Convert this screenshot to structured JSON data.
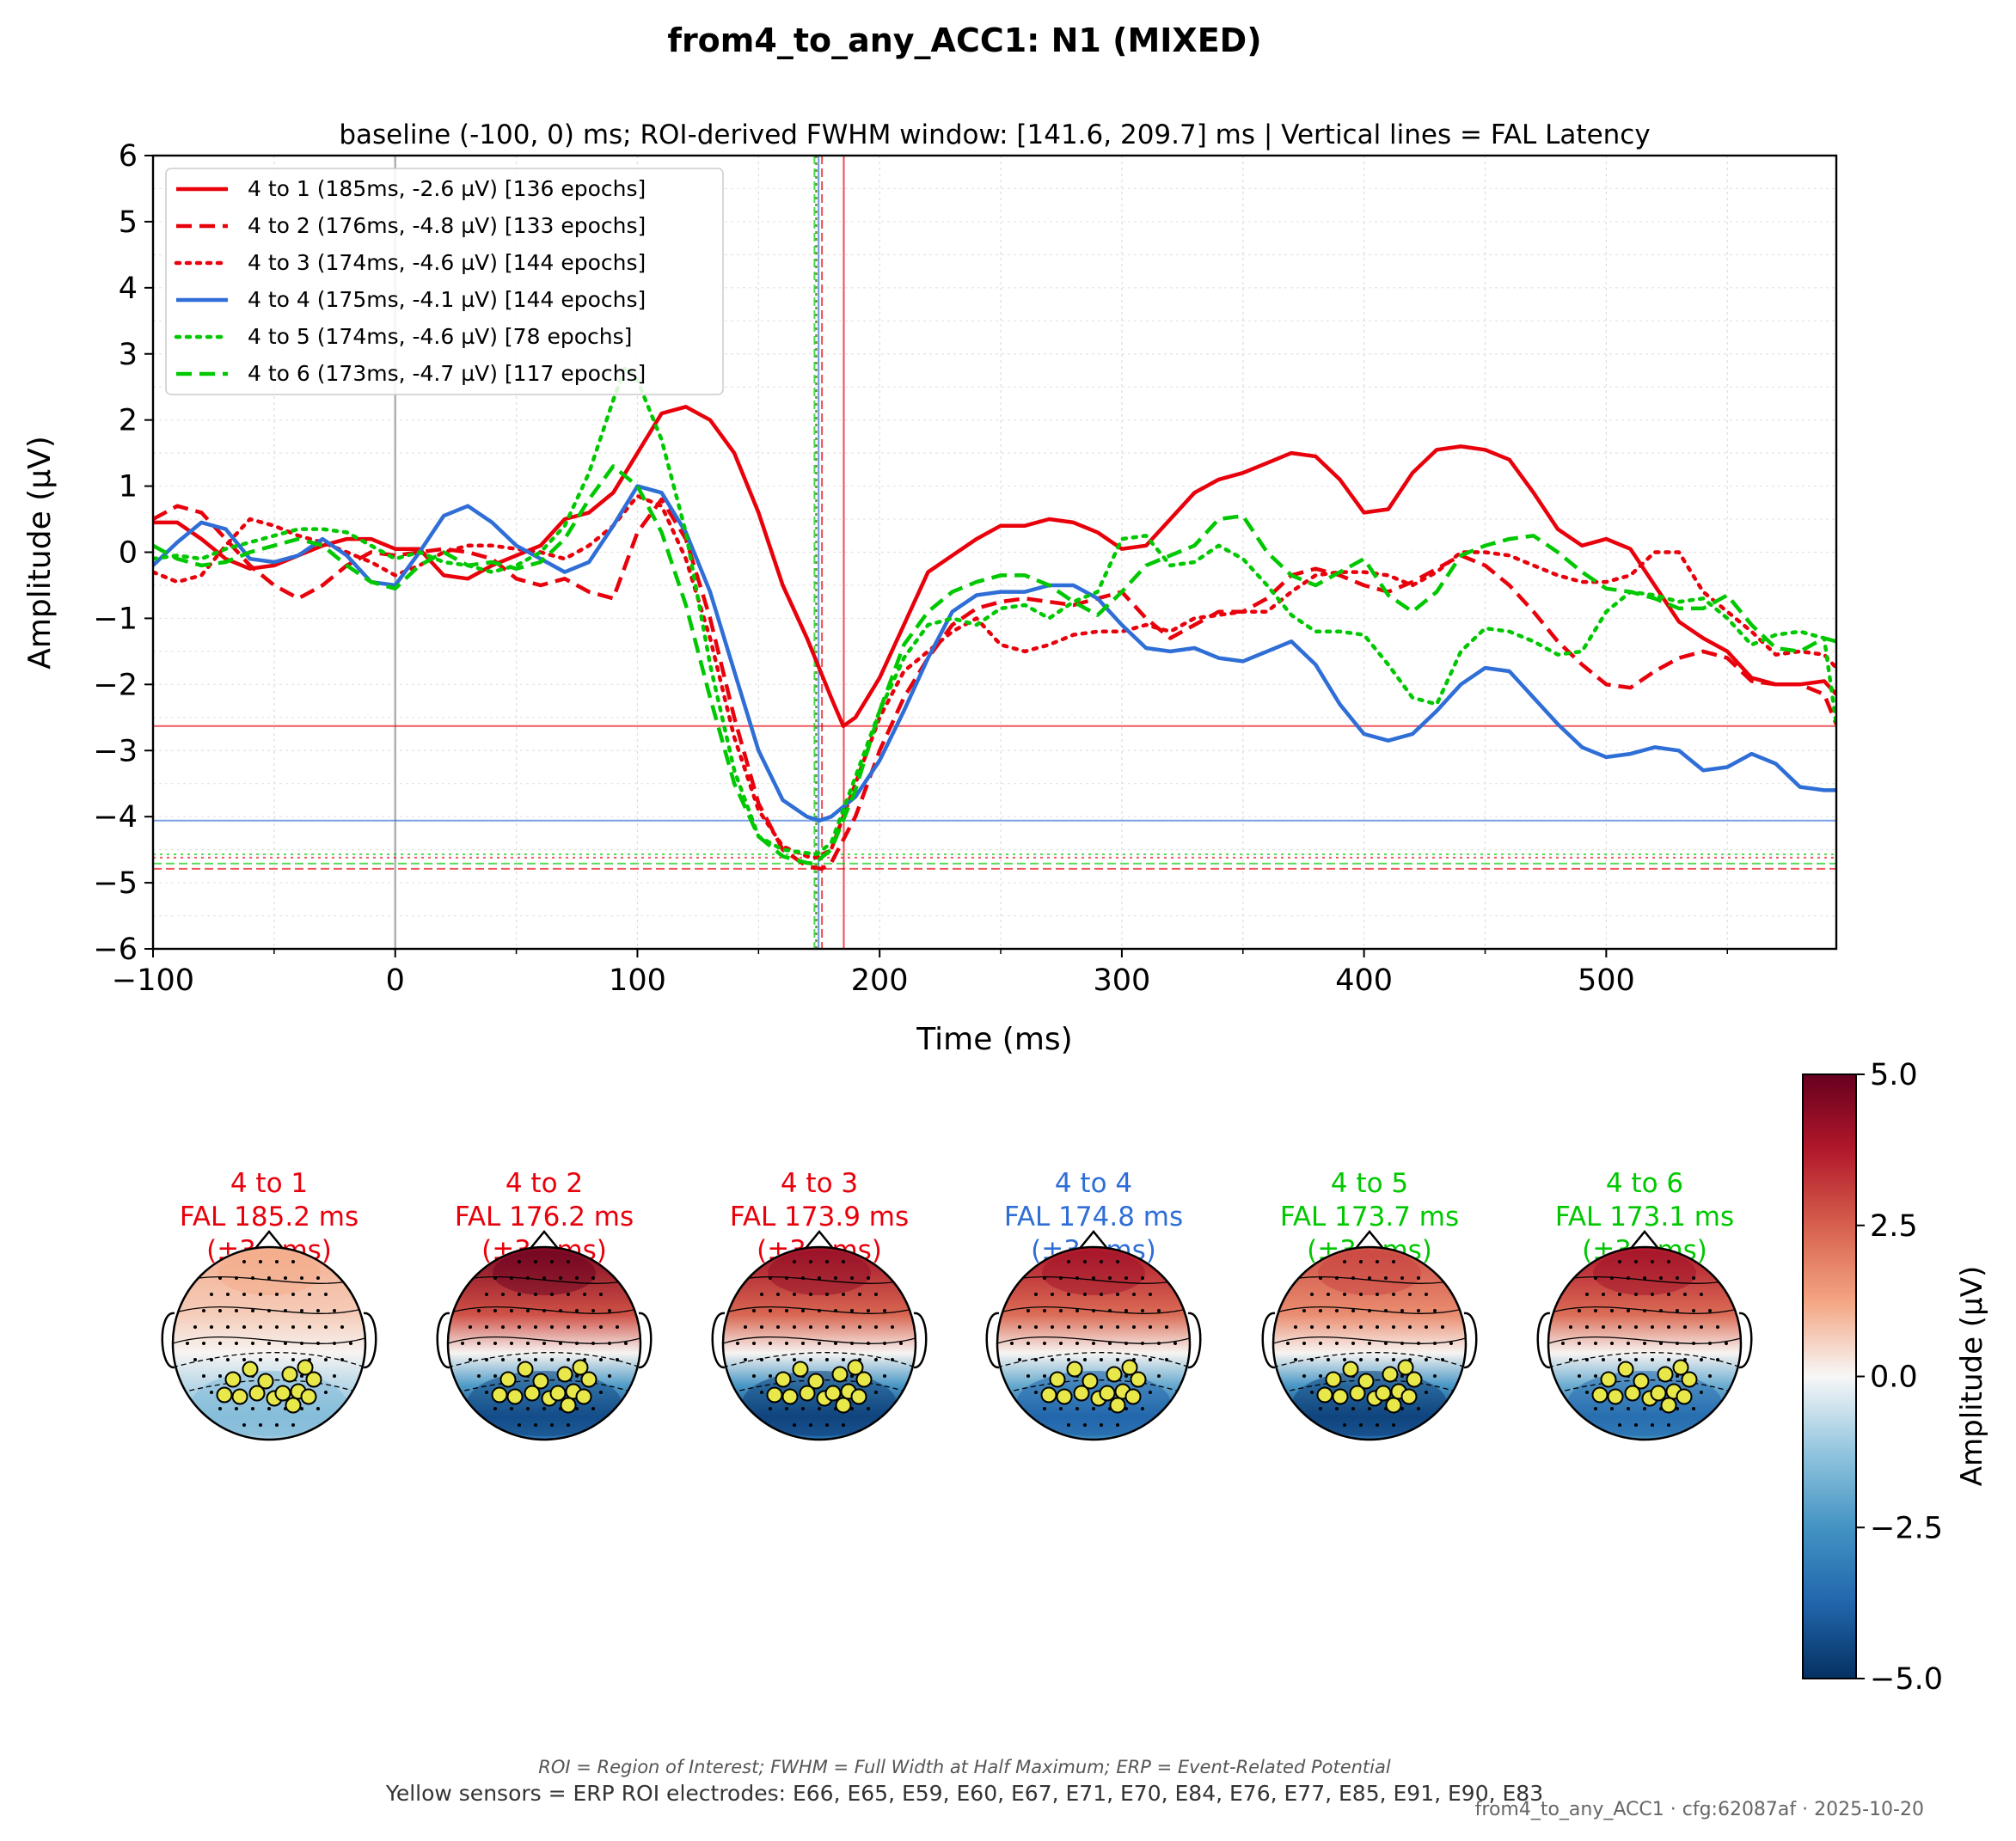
{
  "figure": {
    "title": "from4_to_any_ACC1: N1 (MIXED)",
    "footnote": "ROI = Region of Interest; FWHM = Full Width at Half Maximum; ERP = Event-Related Potential",
    "roi_note": "Yellow sensors = ERP ROI electrodes: E66, E65, E59, E60, E67, E71, E70, E84, E76, E77, E85, E91, E90, E83",
    "stamp": "from4_to_any_ACC1 · cfg:62087af · 2025-10-20"
  },
  "chart_data": [
    {
      "type": "line",
      "subtitle": "baseline (-100, 0) ms; ROI-derived FWHM window: [141.6, 209.7] ms | Vertical lines = FAL Latency",
      "xlabel": "Time (ms)",
      "ylabel": "Amplitude (µV)",
      "xlim": [
        -100,
        595
      ],
      "ylim": [
        -6,
        6
      ],
      "xticks": [
        -100,
        0,
        100,
        200,
        300,
        400,
        500
      ],
      "xtick_labels": [
        "−100",
        "0",
        "100",
        "200",
        "300",
        "400",
        "500"
      ],
      "yticks": [
        -6,
        -5,
        -4,
        -3,
        -2,
        -1,
        0,
        1,
        2,
        3,
        4,
        5,
        6
      ],
      "ytick_labels": [
        "−6",
        "−5",
        "−4",
        "−3",
        "−2",
        "−1",
        "0",
        "1",
        "2",
        "3",
        "4",
        "5",
        "6"
      ],
      "grid": true,
      "legend_position": "upper-left",
      "zero_marker_x": 0,
      "series": [
        {
          "name": "4 to 1 (185ms, -2.6 µV) [136 epochs]",
          "color": "#e8000b",
          "style": "solid",
          "latency": 185.2,
          "peak": -2.63,
          "x": [
            -100,
            -90,
            -80,
            -70,
            -60,
            -50,
            -40,
            -30,
            -20,
            -10,
            0,
            10,
            20,
            30,
            40,
            50,
            60,
            70,
            80,
            90,
            100,
            110,
            120,
            130,
            140,
            150,
            160,
            170,
            180,
            185,
            190,
            200,
            210,
            220,
            230,
            240,
            250,
            260,
            270,
            280,
            290,
            300,
            310,
            320,
            330,
            340,
            350,
            360,
            370,
            380,
            390,
            400,
            410,
            420,
            430,
            440,
            450,
            460,
            470,
            480,
            490,
            500,
            510,
            520,
            530,
            540,
            550,
            560,
            570,
            580,
            590,
            595
          ],
          "y": [
            0.45,
            0.45,
            0.2,
            -0.1,
            -0.25,
            -0.2,
            -0.05,
            0.1,
            0.2,
            0.2,
            0.05,
            0.05,
            -0.35,
            -0.4,
            -0.2,
            -0.05,
            0.1,
            0.5,
            0.6,
            0.9,
            1.5,
            2.1,
            2.2,
            2.0,
            1.5,
            0.6,
            -0.5,
            -1.3,
            -2.2,
            -2.63,
            -2.5,
            -1.9,
            -1.1,
            -0.3,
            -0.05,
            0.2,
            0.4,
            0.4,
            0.5,
            0.45,
            0.3,
            0.05,
            0.1,
            0.5,
            0.9,
            1.1,
            1.2,
            1.35,
            1.5,
            1.45,
            1.1,
            0.6,
            0.65,
            1.2,
            1.55,
            1.6,
            1.55,
            1.4,
            0.9,
            0.35,
            0.1,
            0.2,
            0.05,
            -0.5,
            -1.05,
            -1.3,
            -1.5,
            -1.9,
            -2.0,
            -2.0,
            -1.95,
            -2.15
          ]
        },
        {
          "name": "4 to 2 (176ms, -4.8 µV) [133 epochs]",
          "color": "#e8000b",
          "style": "dashed",
          "latency": 176.2,
          "peak": -4.79,
          "x": [
            -100,
            -90,
            -80,
            -70,
            -60,
            -50,
            -40,
            -30,
            -20,
            -10,
            0,
            10,
            20,
            30,
            40,
            50,
            60,
            70,
            80,
            90,
            100,
            110,
            120,
            130,
            140,
            150,
            160,
            170,
            176,
            180,
            190,
            200,
            210,
            220,
            230,
            240,
            250,
            260,
            270,
            280,
            290,
            300,
            310,
            320,
            330,
            340,
            350,
            360,
            370,
            380,
            390,
            400,
            410,
            420,
            430,
            440,
            450,
            460,
            470,
            480,
            490,
            500,
            510,
            520,
            530,
            540,
            550,
            560,
            570,
            580,
            590,
            595
          ],
          "y": [
            0.5,
            0.7,
            0.6,
            0.2,
            -0.2,
            -0.5,
            -0.7,
            -0.5,
            -0.2,
            0.0,
            -0.05,
            0.0,
            0.05,
            0.0,
            -0.1,
            -0.4,
            -0.5,
            -0.4,
            -0.6,
            -0.7,
            0.3,
            0.8,
            0.2,
            -1.0,
            -2.5,
            -3.8,
            -4.5,
            -4.75,
            -4.79,
            -4.7,
            -4.0,
            -3.0,
            -2.2,
            -1.6,
            -1.1,
            -0.85,
            -0.75,
            -0.7,
            -0.75,
            -0.8,
            -0.7,
            -0.6,
            -1.0,
            -1.3,
            -1.1,
            -0.9,
            -0.9,
            -0.7,
            -0.35,
            -0.25,
            -0.35,
            -0.5,
            -0.6,
            -0.45,
            -0.25,
            -0.05,
            -0.2,
            -0.5,
            -0.9,
            -1.35,
            -1.7,
            -2.0,
            -2.05,
            -1.8,
            -1.6,
            -1.5,
            -1.6,
            -1.95,
            -2.0,
            -2.0,
            -2.15,
            -2.6
          ]
        },
        {
          "name": "4 to 3 (174ms, -4.6 µV) [144 epochs]",
          "color": "#e8000b",
          "style": "dotted",
          "latency": 173.9,
          "peak": -4.62,
          "x": [
            -100,
            -90,
            -80,
            -70,
            -60,
            -50,
            -40,
            -30,
            -20,
            -10,
            0,
            10,
            20,
            30,
            40,
            50,
            60,
            70,
            80,
            90,
            100,
            110,
            120,
            130,
            140,
            150,
            160,
            170,
            174,
            180,
            190,
            200,
            210,
            220,
            230,
            240,
            250,
            260,
            270,
            280,
            290,
            300,
            310,
            320,
            330,
            340,
            350,
            360,
            370,
            380,
            390,
            400,
            410,
            420,
            430,
            440,
            450,
            460,
            470,
            480,
            490,
            500,
            510,
            520,
            530,
            540,
            550,
            560,
            570,
            580,
            590,
            595
          ],
          "y": [
            -0.3,
            -0.45,
            -0.35,
            0.1,
            0.5,
            0.4,
            0.25,
            0.15,
            0.0,
            -0.15,
            -0.35,
            -0.2,
            0.0,
            0.1,
            0.1,
            0.05,
            0.0,
            -0.1,
            0.1,
            0.4,
            0.85,
            0.7,
            -0.1,
            -1.3,
            -2.8,
            -3.9,
            -4.45,
            -4.6,
            -4.62,
            -4.5,
            -3.5,
            -2.5,
            -1.8,
            -1.5,
            -1.2,
            -1.0,
            -1.4,
            -1.5,
            -1.4,
            -1.25,
            -1.2,
            -1.2,
            -1.1,
            -1.2,
            -1.0,
            -0.95,
            -0.9,
            -0.9,
            -0.6,
            -0.35,
            -0.3,
            -0.3,
            -0.35,
            -0.5,
            -0.3,
            0.0,
            0.0,
            -0.05,
            -0.2,
            -0.35,
            -0.45,
            -0.45,
            -0.35,
            0.0,
            0.0,
            -0.6,
            -0.9,
            -1.2,
            -1.55,
            -1.5,
            -1.55,
            -1.75
          ]
        },
        {
          "name": "4 to 4 (175ms, -4.1 µV) [144 epochs]",
          "color": "#2f6ed6",
          "style": "solid",
          "latency": 174.8,
          "peak": -4.06,
          "x": [
            -100,
            -90,
            -80,
            -70,
            -60,
            -50,
            -40,
            -30,
            -20,
            -10,
            0,
            10,
            20,
            30,
            40,
            50,
            60,
            70,
            80,
            90,
            100,
            110,
            120,
            130,
            140,
            150,
            160,
            170,
            175,
            180,
            190,
            200,
            210,
            220,
            230,
            240,
            250,
            260,
            270,
            280,
            290,
            300,
            310,
            320,
            330,
            340,
            350,
            360,
            370,
            380,
            390,
            400,
            410,
            420,
            430,
            440,
            450,
            460,
            470,
            480,
            490,
            500,
            510,
            520,
            530,
            540,
            550,
            560,
            570,
            580,
            590,
            595
          ],
          "y": [
            -0.2,
            0.15,
            0.45,
            0.35,
            -0.1,
            -0.15,
            -0.05,
            0.2,
            -0.05,
            -0.45,
            -0.5,
            0.0,
            0.55,
            0.7,
            0.45,
            0.1,
            -0.1,
            -0.3,
            -0.15,
            0.4,
            1.0,
            0.9,
            0.3,
            -0.6,
            -1.8,
            -3.0,
            -3.75,
            -4.0,
            -4.06,
            -4.0,
            -3.7,
            -3.15,
            -2.4,
            -1.6,
            -0.9,
            -0.65,
            -0.6,
            -0.6,
            -0.5,
            -0.5,
            -0.7,
            -1.1,
            -1.45,
            -1.5,
            -1.45,
            -1.6,
            -1.65,
            -1.5,
            -1.35,
            -1.7,
            -2.3,
            -2.75,
            -2.85,
            -2.75,
            -2.4,
            -2.0,
            -1.75,
            -1.8,
            -2.2,
            -2.6,
            -2.95,
            -3.1,
            -3.05,
            -2.95,
            -3.0,
            -3.3,
            -3.25,
            -3.05,
            -3.2,
            -3.55,
            -3.6,
            -3.6
          ]
        },
        {
          "name": "4 to 5 (174ms, -4.6 µV) [78 epochs]",
          "color": "#00c800",
          "style": "dotted",
          "latency": 173.7,
          "peak": -4.57,
          "x": [
            -100,
            -90,
            -80,
            -70,
            -60,
            -50,
            -40,
            -30,
            -20,
            -10,
            0,
            10,
            20,
            30,
            40,
            50,
            60,
            70,
            80,
            90,
            95,
            100,
            110,
            120,
            130,
            140,
            150,
            160,
            170,
            174,
            180,
            190,
            200,
            210,
            220,
            230,
            240,
            250,
            260,
            270,
            280,
            290,
            300,
            310,
            320,
            330,
            340,
            350,
            360,
            370,
            380,
            390,
            400,
            410,
            420,
            430,
            440,
            450,
            460,
            470,
            480,
            490,
            500,
            510,
            520,
            530,
            540,
            550,
            560,
            570,
            580,
            590,
            595
          ],
          "y": [
            -0.1,
            -0.05,
            -0.1,
            0.05,
            0.15,
            0.25,
            0.35,
            0.35,
            0.3,
            0.1,
            -0.1,
            0.0,
            -0.15,
            -0.2,
            -0.3,
            -0.2,
            0.0,
            0.4,
            1.2,
            2.3,
            2.8,
            2.6,
            1.7,
            0.3,
            -1.7,
            -3.3,
            -4.3,
            -4.5,
            -4.55,
            -4.57,
            -4.4,
            -3.4,
            -2.4,
            -1.6,
            -1.1,
            -1.0,
            -1.1,
            -0.85,
            -0.8,
            -1.0,
            -0.75,
            -0.6,
            0.2,
            0.25,
            -0.2,
            -0.15,
            0.1,
            -0.1,
            -0.5,
            -0.95,
            -1.2,
            -1.2,
            -1.25,
            -1.7,
            -2.2,
            -2.3,
            -1.5,
            -1.15,
            -1.2,
            -1.35,
            -1.55,
            -1.5,
            -0.9,
            -0.6,
            -0.65,
            -0.75,
            -0.7,
            -1.0,
            -1.4,
            -1.25,
            -1.2,
            -1.3,
            -2.6
          ]
        },
        {
          "name": "4 to 6 (173ms, -4.7 µV) [117 epochs]",
          "color": "#00c800",
          "style": "dashed",
          "latency": 173.1,
          "peak": -4.71,
          "x": [
            -100,
            -90,
            -80,
            -70,
            -60,
            -50,
            -40,
            -30,
            -20,
            -10,
            0,
            10,
            20,
            30,
            40,
            50,
            60,
            70,
            80,
            90,
            100,
            110,
            120,
            130,
            140,
            150,
            160,
            170,
            173,
            180,
            190,
            200,
            210,
            220,
            230,
            240,
            250,
            260,
            270,
            280,
            290,
            300,
            310,
            320,
            330,
            340,
            350,
            360,
            370,
            380,
            390,
            400,
            410,
            420,
            430,
            440,
            450,
            460,
            470,
            480,
            490,
            500,
            510,
            520,
            530,
            540,
            550,
            560,
            570,
            580,
            590,
            595
          ],
          "y": [
            0.1,
            -0.1,
            -0.2,
            -0.15,
            0.0,
            0.1,
            0.2,
            0.1,
            -0.2,
            -0.45,
            -0.55,
            -0.2,
            0.0,
            -0.2,
            -0.15,
            -0.25,
            -0.15,
            0.2,
            0.8,
            1.3,
            1.0,
            0.3,
            -0.8,
            -2.2,
            -3.5,
            -4.3,
            -4.6,
            -4.7,
            -4.71,
            -4.5,
            -3.6,
            -2.4,
            -1.4,
            -0.9,
            -0.6,
            -0.45,
            -0.35,
            -0.35,
            -0.5,
            -0.75,
            -0.95,
            -0.6,
            -0.2,
            -0.05,
            0.1,
            0.5,
            0.55,
            0.0,
            -0.35,
            -0.5,
            -0.3,
            -0.1,
            -0.65,
            -0.9,
            -0.6,
            -0.05,
            0.1,
            0.2,
            0.25,
            0.0,
            -0.3,
            -0.55,
            -0.6,
            -0.7,
            -0.85,
            -0.85,
            -0.65,
            -1.1,
            -1.45,
            -1.5,
            -1.3,
            -1.35
          ]
        }
      ]
    },
    {
      "type": "heatmap",
      "description_free": true,
      "colorbar_label": "Amplitude (µV)",
      "colorbar_range": [
        -5.0,
        5.0
      ],
      "colorbar_ticks": [
        5.0,
        2.5,
        0.0,
        -2.5,
        -5.0
      ],
      "colorbar_tick_labels": [
        "5.0",
        "2.5",
        "0.0",
        "−2.5",
        "−5.0"
      ],
      "colormap": "RdBu_r",
      "topomaps": [
        {
          "label": "4 to 1",
          "fal": "FAL 185.2 ms",
          "window": "(±34 ms)",
          "color": "#e8000b",
          "front_level": 1.1,
          "back_level": -1.4
        },
        {
          "label": "4 to 2",
          "fal": "FAL 176.2 ms",
          "window": "(±34 ms)",
          "color": "#e8000b",
          "front_level": 4.6,
          "back_level": -4.2
        },
        {
          "label": "4 to 3",
          "fal": "FAL 173.9 ms",
          "window": "(±34 ms)",
          "color": "#e8000b",
          "front_level": 4.0,
          "back_level": -4.4
        },
        {
          "label": "4 to 4",
          "fal": "FAL 174.8 ms",
          "window": "(±34 ms)",
          "color": "#2f6ed6",
          "front_level": 3.8,
          "back_level": -3.6
        },
        {
          "label": "4 to 5",
          "fal": "FAL 173.7 ms",
          "window": "(±34 ms)",
          "color": "#00c800",
          "front_level": 2.8,
          "back_level": -4.4
        },
        {
          "label": "4 to 6",
          "fal": "FAL 173.1 ms",
          "window": "(±34 ms)",
          "color": "#00c800",
          "front_level": 3.8,
          "back_level": -3.4
        }
      ]
    }
  ]
}
